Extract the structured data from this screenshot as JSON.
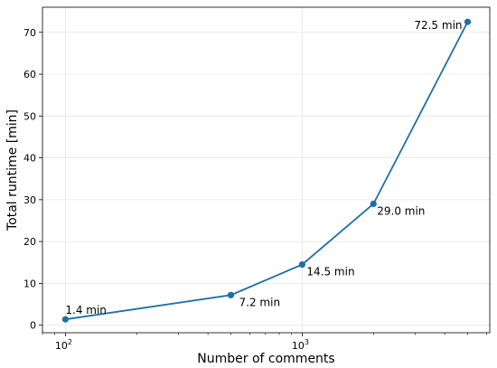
{
  "chart_data": {
    "type": "line",
    "title": "",
    "xlabel": "Number of comments",
    "ylabel": "Total runtime [min]",
    "xscale": "log",
    "xlim": [
      80,
      6200
    ],
    "ylim": [
      -1.8,
      76
    ],
    "yticks": [
      0,
      10,
      20,
      30,
      40,
      50,
      60,
      70
    ],
    "xticks": [
      {
        "value": 100,
        "base": "10",
        "exp": "2"
      },
      {
        "value": 1000,
        "base": "10",
        "exp": "3"
      }
    ],
    "grid": true,
    "colors": {
      "line": "#1f6fa6",
      "grid": "#e6e6e6"
    },
    "series": [
      {
        "points": [
          {
            "x": 100,
            "y": 1.4,
            "label": "1.4 min"
          },
          {
            "x": 500,
            "y": 7.2,
            "label": "7.2 min"
          },
          {
            "x": 1000,
            "y": 14.5,
            "label": "14.5 min"
          },
          {
            "x": 2000,
            "y": 29.0,
            "label": "29.0 min"
          },
          {
            "x": 5000,
            "y": 72.5,
            "label": "72.5 min"
          }
        ]
      }
    ]
  }
}
